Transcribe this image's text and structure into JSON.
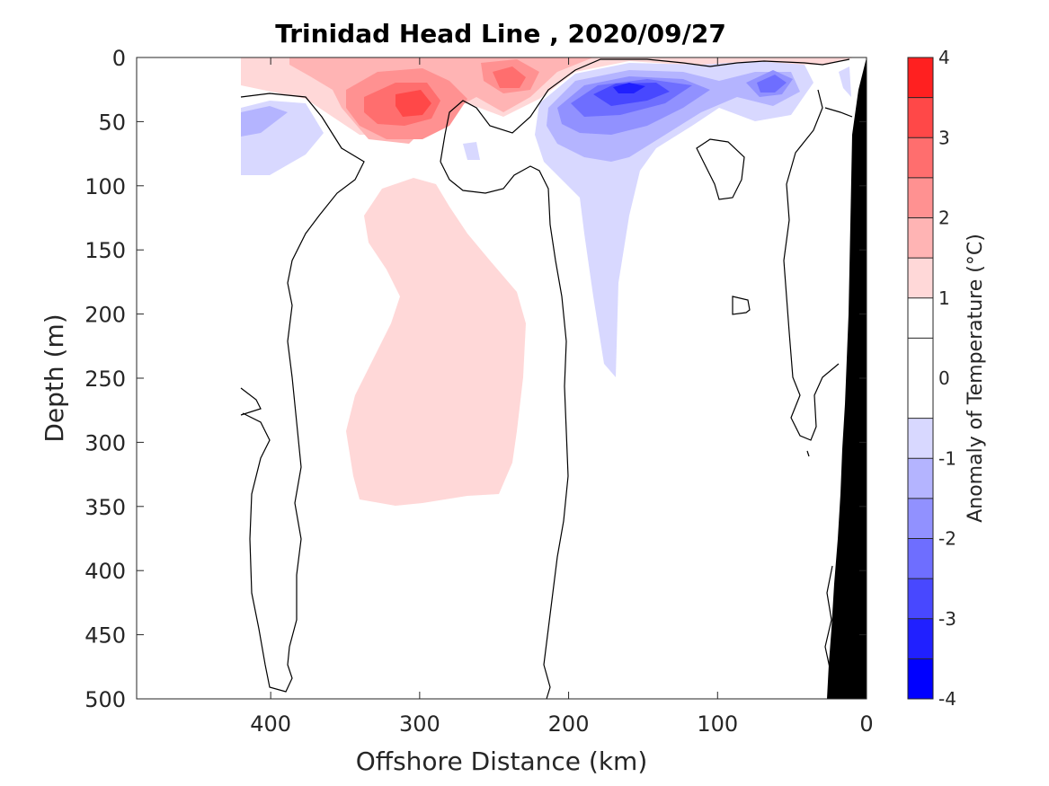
{
  "chart_data": {
    "type": "heatmap",
    "subtype": "filled-contour section",
    "title": "Trinidad Head Line , 2020/09/27",
    "xlabel": "Offshore Distance (km)",
    "ylabel": "Depth (m)",
    "xlim": [
      490,
      0
    ],
    "x_reversed": true,
    "ylim": [
      0,
      500
    ],
    "y_reversed": true,
    "xticks": [
      400,
      300,
      200,
      100,
      0
    ],
    "yticks": [
      0,
      50,
      100,
      150,
      200,
      250,
      300,
      350,
      400,
      450,
      500
    ],
    "colorbar": {
      "label": "Anomaly of Temperature (°C)",
      "range": [
        -4,
        4
      ],
      "levels": [
        -4,
        -3.5,
        -3,
        -2.5,
        -2,
        -1.5,
        -1,
        -0.5,
        0.5,
        1,
        1.5,
        2,
        2.5,
        3,
        3.5,
        4
      ],
      "ticks": [
        4,
        3,
        2,
        1,
        0,
        -1,
        -2,
        -3,
        -4
      ],
      "colors": [
        "#0000ff",
        "#2020ff",
        "#4848ff",
        "#6e6eff",
        "#9191ff",
        "#b4b4ff",
        "#d8d8ff",
        "#ffffff",
        "#ffffff",
        "#ffd8d8",
        "#ffb4b4",
        "#ff9191",
        "#ff6e6e",
        "#ff4848",
        "#ff2020",
        "#ff0000"
      ]
    },
    "data_extent": {
      "x_max_km": 420,
      "x_min_km": 0
    },
    "features": [
      {
        "name": "warm surface core",
        "x_km": 300,
        "depth_m": 35,
        "anomaly": 2.5
      },
      {
        "name": "warm surface core",
        "x_km": 245,
        "depth_m": 20,
        "anomaly": 2.5
      },
      {
        "name": "cold surface core",
        "x_km": 160,
        "depth_m": 25,
        "anomaly": -3.5
      },
      {
        "name": "cold surface core",
        "x_km": 65,
        "depth_m": 20,
        "anomaly": -2
      },
      {
        "name": "warm subsurface lens",
        "x_km": 280,
        "depth_m": 250,
        "anomaly": 0.75
      },
      {
        "name": "cold plume",
        "x_km": 175,
        "depth_m": 180,
        "anomaly": -0.75
      }
    ],
    "grid": false,
    "legend": "colorbar right",
    "land_mask": "black bathymetry on right edge"
  }
}
